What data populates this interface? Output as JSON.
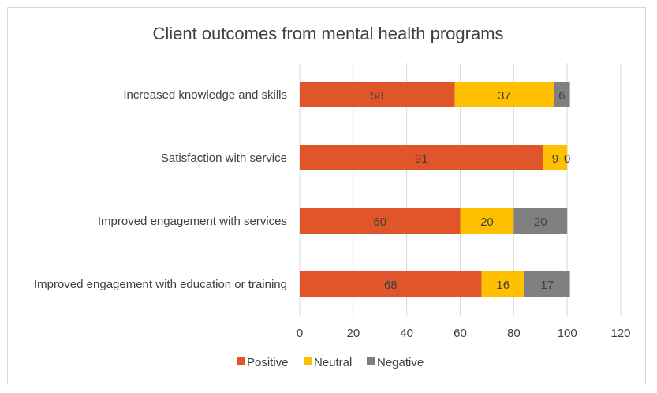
{
  "chart_data": {
    "type": "bar",
    "orientation": "horizontal",
    "stacked": true,
    "title": "Client outcomes from mental health programs",
    "categories": [
      "Increased knowledge and skills",
      "Satisfaction with service",
      "Improved engagement with services",
      "Improved engagement with education or training"
    ],
    "series": [
      {
        "name": "Positive",
        "color": "#E0552A",
        "values": [
          58,
          91,
          60,
          68
        ]
      },
      {
        "name": "Neutral",
        "color": "#FFC000",
        "values": [
          37,
          9,
          20,
          16
        ]
      },
      {
        "name": "Negative",
        "color": "#808080",
        "values": [
          6,
          0,
          20,
          17
        ]
      }
    ],
    "xlim": [
      0,
      120
    ],
    "xticks": [
      0,
      20,
      40,
      60,
      80,
      100,
      120
    ],
    "grid": true,
    "legend_position": "bottom"
  }
}
